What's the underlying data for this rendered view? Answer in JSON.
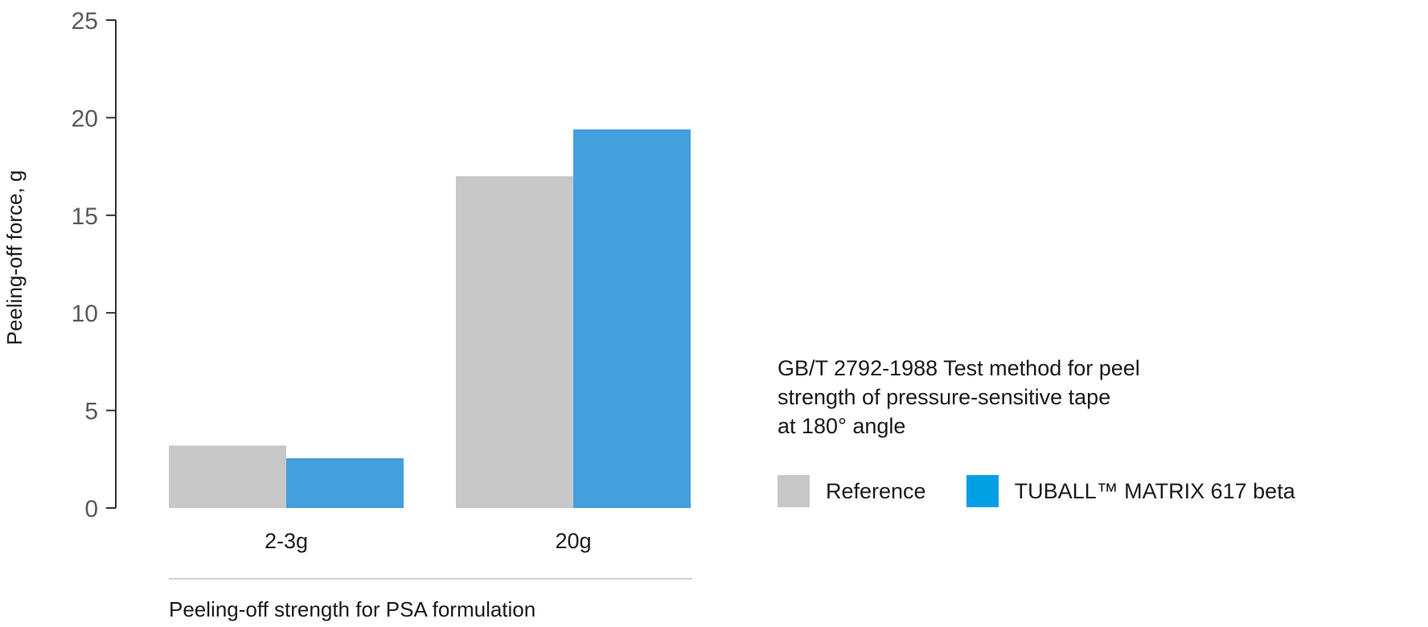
{
  "chart_data": {
    "type": "bar",
    "title": "",
    "ylabel": "Peeling-off force, g",
    "xlabel": "Peeling-off strength for PSA formulation",
    "categories": [
      "2-3g",
      "20g"
    ],
    "series": [
      {
        "name": "Reference",
        "color": "#c6c8c7",
        "values": [
          3.2,
          17.0
        ]
      },
      {
        "name": "TUBALL™ MATRIX 617 beta",
        "color": "#43a0dc",
        "values": [
          2.55,
          19.4
        ]
      }
    ],
    "ylim": [
      0,
      25
    ],
    "yticks": [
      0,
      5,
      10,
      15,
      20,
      25
    ],
    "grid": false,
    "legend_position": "bottom-right"
  },
  "note_lines": [
    "GB/T 2792-1988 Test method for peel",
    "strength of pressure-sensitive tape",
    "at 180° angle"
  ],
  "legend": [
    {
      "label": "Reference",
      "color": "#c6c8c7"
    },
    {
      "label": "TUBALL™ MATRIX 617 beta",
      "color": "#00a0e3"
    }
  ]
}
